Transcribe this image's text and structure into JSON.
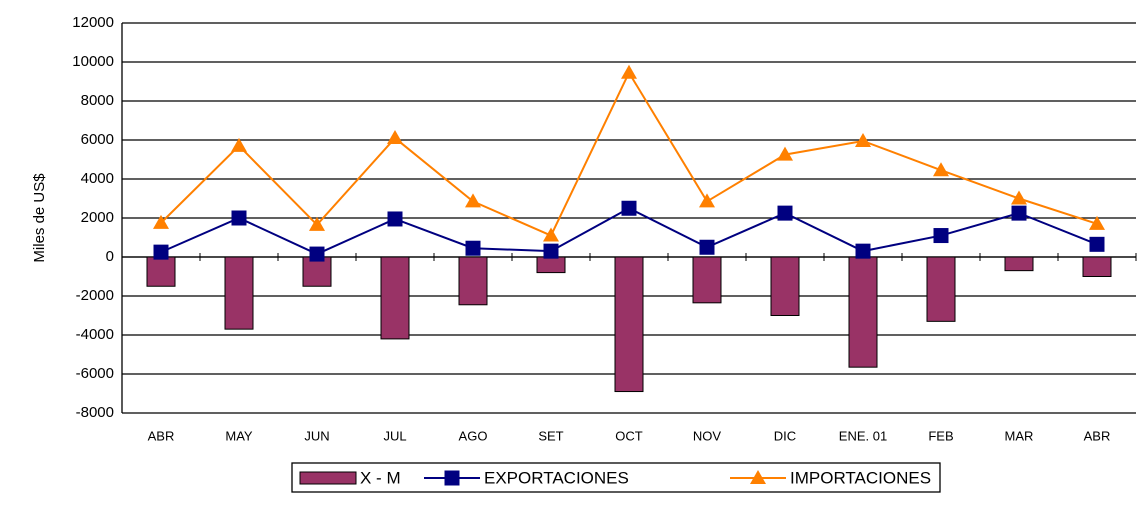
{
  "chart_data": {
    "type": "bar-line",
    "y_label": "Miles de US$",
    "categories": [
      "ABR",
      "MAY",
      "JUN",
      "JUL",
      "AGO",
      "SET",
      "OCT",
      "NOV",
      "DIC",
      "ENE. 01",
      "FEB",
      "MAR",
      "ABR"
    ],
    "series": [
      {
        "name": "X - M",
        "type": "bar",
        "color": "#993366",
        "values": [
          -1500,
          -3700,
          -1500,
          -4200,
          -2450,
          -800,
          -6900,
          -2350,
          -3000,
          -5650,
          -3300,
          -700,
          -1000
        ]
      },
      {
        "name": "EXPORTACIONES",
        "type": "line",
        "marker": "square",
        "color": "#000080",
        "values": [
          250,
          2000,
          150,
          1950,
          450,
          300,
          2500,
          500,
          2250,
          300,
          1100,
          2250,
          650
        ]
      },
      {
        "name": "IMPORTACIONES",
        "type": "line",
        "marker": "triangle",
        "color": "#FF8000",
        "values": [
          1750,
          5700,
          1650,
          6100,
          2850,
          1100,
          9450,
          2850,
          5250,
          5950,
          4450,
          3000,
          1700
        ]
      }
    ],
    "ylim": [
      -8000,
      12000
    ],
    "yticks": [
      -8000,
      -6000,
      -4000,
      -2000,
      0,
      2000,
      4000,
      6000,
      8000,
      10000,
      12000
    ],
    "grid": true,
    "legend": "bottom"
  }
}
